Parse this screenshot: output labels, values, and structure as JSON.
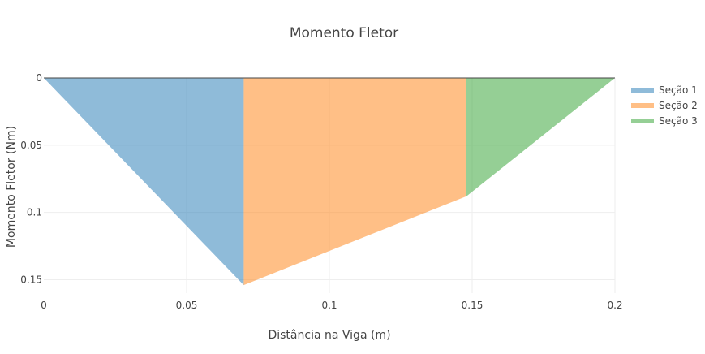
{
  "chart_data": {
    "type": "area",
    "title": "Momento Fletor",
    "xlabel": "Distância na Viga (m)",
    "ylabel": "Momento Fletor (Nm)",
    "xlim": [
      0,
      0.2
    ],
    "ylim": [
      0,
      0.16
    ],
    "y_reversed": true,
    "x_ticks": [
      0,
      0.05,
      0.1,
      0.15,
      0.2
    ],
    "x_tick_labels": [
      "0",
      "0.05",
      "0.1",
      "0.15",
      "0.2"
    ],
    "y_ticks": [
      0,
      0.05,
      0.1,
      0.15
    ],
    "y_tick_labels": [
      "0",
      "0.05",
      "0.1",
      "0.15"
    ],
    "grid": true,
    "legend_position": "top-right",
    "series": [
      {
        "name": "Seção 1",
        "color": "#1f77b4",
        "x": [
          0,
          0.07
        ],
        "y": [
          0,
          0.154
        ]
      },
      {
        "name": "Seção 2",
        "color": "#ff7f0e",
        "x": [
          0.07,
          0.148
        ],
        "y": [
          0.154,
          0.088
        ]
      },
      {
        "name": "Seção 3",
        "color": "#2ca02c",
        "x": [
          0.148,
          0.2
        ],
        "y": [
          0.088,
          0
        ]
      }
    ]
  }
}
